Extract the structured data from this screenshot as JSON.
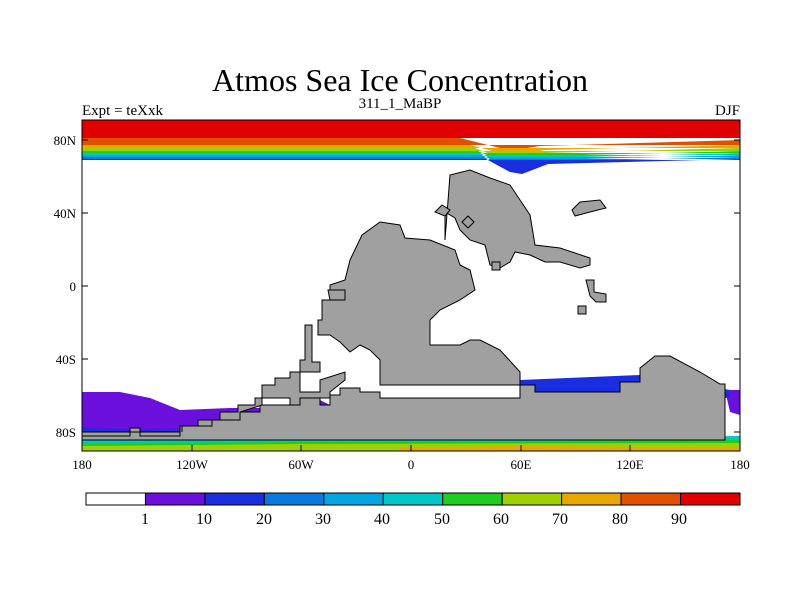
{
  "title": "Atmos Sea Ice Concentration",
  "subtitle": "311_1_MaBP",
  "left_label": "Expt = teXxk",
  "right_label": "DJF",
  "colors": {
    "land": "#a0a0a0",
    "palette": [
      "#ffffff",
      "#6a0fdc",
      "#1a2ee0",
      "#0b78e0",
      "#02a6e0",
      "#00c8c8",
      "#20cc20",
      "#a0d000",
      "#e8a800",
      "#e05000",
      "#e00000"
    ]
  },
  "chart_data": {
    "type": "map",
    "variable": "Atmos Sea Ice Concentration",
    "projection": "cylindrical equidistant",
    "x_ticks": [
      "180",
      "120W",
      "60W",
      "0",
      "60E",
      "120E",
      "180"
    ],
    "y_ticks": [
      "80N",
      "40N",
      "0",
      "40S",
      "80S"
    ],
    "colorbar": {
      "levels": [
        "1",
        "10",
        "20",
        "30",
        "40",
        "50",
        "60",
        "70",
        "80",
        "90"
      ],
      "n_boxes": 11
    }
  }
}
